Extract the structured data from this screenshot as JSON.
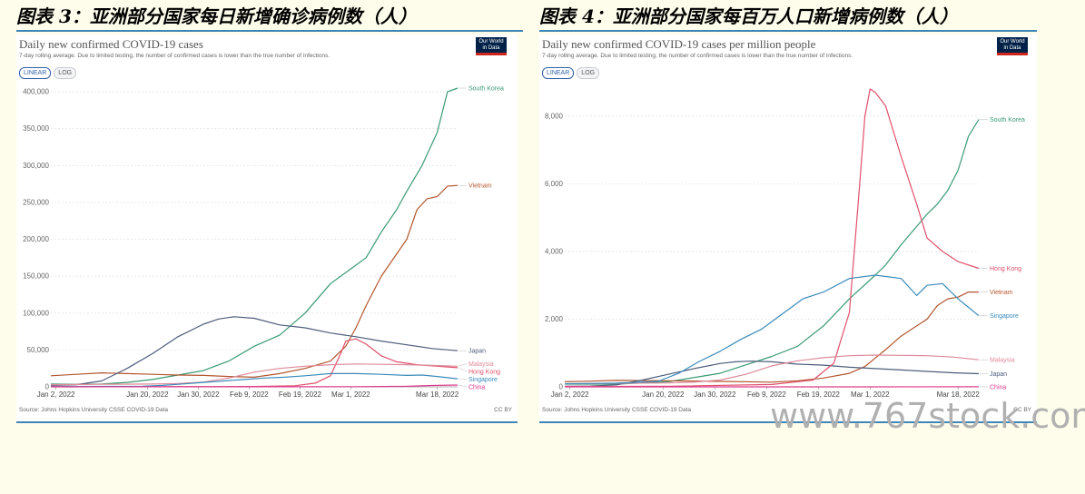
{
  "figures": {
    "fig3_title": "图表 3：亚洲部分国家每日新增确诊病例数（人）",
    "fig4_title": "图表 4：亚洲部分国家每百万人口新增病例数（人）"
  },
  "watermark": "www.767stock.com",
  "colors": {
    "South Korea": "#3a9b73",
    "Vietnam": "#b3562f",
    "Japan": "#4e5d7c",
    "Hong Kong": "#e0506b",
    "Malaysia": "#df8a9a",
    "Singapore": "#3b8bbb",
    "China": "#df3a8c"
  },
  "chart_data": [
    {
      "type": "line",
      "title": "Daily new confirmed COVID-19 cases",
      "subtitle": "7-day rolling average. Due to limited testing, the number of confirmed cases is lower than the true number of infections.",
      "scale_buttons": [
        "LINEAR",
        "LOG"
      ],
      "active_scale": "LINEAR",
      "logo_text": [
        "Our World",
        "in Data"
      ],
      "source": "Source: Johns Hopkins University CSSE COVID-19 Data",
      "license": "CC BY",
      "x_tick_labels": [
        "Jan 2, 2022",
        "Jan 20, 2022",
        "Jan 30, 2022",
        "Feb 9, 2022",
        "Feb 19, 2022",
        "Mar 1, 2022",
        "Mar 18, 2022"
      ],
      "x_tick_days": [
        1,
        19,
        29,
        39,
        49,
        59,
        76
      ],
      "xlim": [
        0,
        80
      ],
      "yticks": [
        0,
        50000,
        100000,
        150000,
        200000,
        250000,
        300000,
        350000,
        400000
      ],
      "ytick_labels": [
        "0",
        "50,000",
        "100,000",
        "150,000",
        "200,000",
        "250,000",
        "300,000",
        "350,000",
        "400,000"
      ],
      "ylim": [
        0,
        405000
      ],
      "grid": true,
      "series": [
        {
          "name": "South Korea",
          "points": [
            [
              0,
              4000
            ],
            [
              5,
              3500
            ],
            [
              10,
              4000
            ],
            [
              15,
              6000
            ],
            [
              20,
              10000
            ],
            [
              25,
              16000
            ],
            [
              30,
              22000
            ],
            [
              35,
              35000
            ],
            [
              40,
              55000
            ],
            [
              45,
              70000
            ],
            [
              50,
              100000
            ],
            [
              55,
              140000
            ],
            [
              60,
              165000
            ],
            [
              62,
              175000
            ],
            [
              65,
              210000
            ],
            [
              68,
              240000
            ],
            [
              70,
              265000
            ],
            [
              73,
              300000
            ],
            [
              75,
              330000
            ],
            [
              76,
              345000
            ],
            [
              78,
              400000
            ],
            [
              80,
              405000
            ]
          ]
        },
        {
          "name": "Vietnam",
          "points": [
            [
              0,
              15000
            ],
            [
              5,
              17000
            ],
            [
              10,
              19000
            ],
            [
              15,
              18000
            ],
            [
              20,
              17000
            ],
            [
              25,
              16000
            ],
            [
              30,
              15500
            ],
            [
              35,
              14000
            ],
            [
              40,
              13000
            ],
            [
              45,
              18000
            ],
            [
              50,
              25000
            ],
            [
              55,
              35000
            ],
            [
              58,
              55000
            ],
            [
              60,
              80000
            ],
            [
              62,
              110000
            ],
            [
              65,
              150000
            ],
            [
              67,
              170000
            ],
            [
              70,
              200000
            ],
            [
              72,
              240000
            ],
            [
              74,
              255000
            ],
            [
              76,
              258000
            ],
            [
              78,
              272000
            ],
            [
              80,
              273000
            ]
          ]
        },
        {
          "name": "Japan",
          "points": [
            [
              0,
              2000
            ],
            [
              5,
              3000
            ],
            [
              10,
              8000
            ],
            [
              15,
              25000
            ],
            [
              20,
              45000
            ],
            [
              25,
              68000
            ],
            [
              30,
              85000
            ],
            [
              33,
              92000
            ],
            [
              36,
              95000
            ],
            [
              40,
              93000
            ],
            [
              45,
              84000
            ],
            [
              50,
              80000
            ],
            [
              55,
              73000
            ],
            [
              60,
              68000
            ],
            [
              65,
              62000
            ],
            [
              70,
              57000
            ],
            [
              75,
              52000
            ],
            [
              80,
              49000
            ]
          ]
        },
        {
          "name": "Hong Kong",
          "points": [
            [
              0,
              50
            ],
            [
              20,
              80
            ],
            [
              40,
              500
            ],
            [
              48,
              1500
            ],
            [
              52,
              5000
            ],
            [
              55,
              15000
            ],
            [
              57,
              45000
            ],
            [
              58,
              62000
            ],
            [
              60,
              65000
            ],
            [
              62,
              58000
            ],
            [
              65,
              42000
            ],
            [
              68,
              34000
            ],
            [
              72,
              30000
            ],
            [
              76,
              28000
            ],
            [
              80,
              26000
            ]
          ]
        },
        {
          "name": "Malaysia",
          "points": [
            [
              0,
              3000
            ],
            [
              10,
              3500
            ],
            [
              20,
              3800
            ],
            [
              25,
              4500
            ],
            [
              30,
              6500
            ],
            [
              35,
              12000
            ],
            [
              40,
              20000
            ],
            [
              45,
              25000
            ],
            [
              50,
              28000
            ],
            [
              55,
              30000
            ],
            [
              60,
              31000
            ],
            [
              65,
              30500
            ],
            [
              70,
              30000
            ],
            [
              75,
              29000
            ],
            [
              80,
              28000
            ]
          ]
        },
        {
          "name": "Singapore",
          "points": [
            [
              0,
              500
            ],
            [
              10,
              600
            ],
            [
              18,
              800
            ],
            [
              22,
              2000
            ],
            [
              26,
              4000
            ],
            [
              30,
              6000
            ],
            [
              34,
              8000
            ],
            [
              38,
              10000
            ],
            [
              42,
              12000
            ],
            [
              46,
              13000
            ],
            [
              50,
              15000
            ],
            [
              55,
              18000
            ],
            [
              60,
              18000
            ],
            [
              65,
              17000
            ],
            [
              70,
              15500
            ],
            [
              73,
              16000
            ],
            [
              76,
              14000
            ],
            [
              80,
              11000
            ]
          ]
        },
        {
          "name": "China",
          "points": [
            [
              0,
              100
            ],
            [
              30,
              100
            ],
            [
              50,
              150
            ],
            [
              60,
              300
            ],
            [
              70,
              700
            ],
            [
              75,
              1800
            ],
            [
              80,
              2500
            ]
          ]
        }
      ],
      "end_labels": {
        "South Korea": "South Korea",
        "Vietnam": "Vietnam",
        "Japan": "Japan",
        "Hong Kong": "Hong Kong",
        "Malaysia": "Malaysia",
        "Singapore": "Singapore",
        "China": "China"
      }
    },
    {
      "type": "line",
      "title": "Daily new confirmed COVID-19 cases per million people",
      "subtitle": "7-day rolling average. Due to limited testing, the number of confirmed cases is lower than the true number of infections.",
      "scale_buttons": [
        "LINEAR",
        "LOG"
      ],
      "active_scale": "LINEAR",
      "logo_text": [
        "Our World",
        "in Data"
      ],
      "source": "Source: Johns Hopkins University CSSE COVID-19 Data",
      "license": "CC BY",
      "x_tick_labels": [
        "Jan 2, 2022",
        "Jan 20, 2022",
        "Jan 30, 2022",
        "Feb 9, 2022",
        "Feb 19, 2022",
        "Mar 1, 2022",
        "Mar 18, 2022"
      ],
      "x_tick_days": [
        1,
        19,
        29,
        39,
        49,
        59,
        76
      ],
      "xlim": [
        0,
        80
      ],
      "yticks": [
        0,
        2000,
        4000,
        6000,
        8000
      ],
      "ytick_labels": [
        "0",
        "2,000",
        "4,000",
        "6,000",
        "8,000"
      ],
      "ylim": [
        0,
        8800
      ],
      "grid": true,
      "series": [
        {
          "name": "South Korea",
          "points": [
            [
              0,
              80
            ],
            [
              10,
              80
            ],
            [
              20,
              150
            ],
            [
              30,
              400
            ],
            [
              35,
              650
            ],
            [
              40,
              900
            ],
            [
              45,
              1200
            ],
            [
              50,
              1800
            ],
            [
              55,
              2600
            ],
            [
              60,
              3300
            ],
            [
              62,
              3600
            ],
            [
              65,
              4200
            ],
            [
              70,
              5100
            ],
            [
              72,
              5400
            ],
            [
              74,
              5800
            ],
            [
              76,
              6400
            ],
            [
              78,
              7400
            ],
            [
              80,
              7900
            ]
          ]
        },
        {
          "name": "Vietnam",
          "points": [
            [
              0,
              150
            ],
            [
              5,
              170
            ],
            [
              10,
              190
            ],
            [
              20,
              180
            ],
            [
              30,
              160
            ],
            [
              40,
              140
            ],
            [
              45,
              180
            ],
            [
              50,
              260
            ],
            [
              55,
              400
            ],
            [
              58,
              600
            ],
            [
              60,
              850
            ],
            [
              62,
              1100
            ],
            [
              65,
              1500
            ],
            [
              67,
              1700
            ],
            [
              70,
              2000
            ],
            [
              72,
              2400
            ],
            [
              74,
              2600
            ],
            [
              76,
              2650
            ],
            [
              78,
              2800
            ],
            [
              80,
              2800
            ]
          ]
        },
        {
          "name": "Japan",
          "points": [
            [
              0,
              20
            ],
            [
              5,
              25
            ],
            [
              10,
              60
            ],
            [
              15,
              200
            ],
            [
              20,
              370
            ],
            [
              25,
              540
            ],
            [
              30,
              690
            ],
            [
              33,
              740
            ],
            [
              36,
              760
            ],
            [
              40,
              740
            ],
            [
              45,
              670
            ],
            [
              50,
              640
            ],
            [
              55,
              580
            ],
            [
              60,
              540
            ],
            [
              65,
              500
            ],
            [
              70,
              455
            ],
            [
              75,
              415
            ],
            [
              80,
              390
            ]
          ]
        },
        {
          "name": "Hong Kong",
          "points": [
            [
              0,
              10
            ],
            [
              20,
              15
            ],
            [
              40,
              70
            ],
            [
              48,
              200
            ],
            [
              52,
              700
            ],
            [
              55,
              2200
            ],
            [
              57,
              6000
            ],
            [
              58,
              8000
            ],
            [
              59,
              8800
            ],
            [
              60,
              8700
            ],
            [
              62,
              8300
            ],
            [
              65,
              6800
            ],
            [
              68,
              5400
            ],
            [
              70,
              4400
            ],
            [
              73,
              4000
            ],
            [
              76,
              3700
            ],
            [
              80,
              3500
            ]
          ]
        },
        {
          "name": "Malaysia",
          "points": [
            [
              0,
              90
            ],
            [
              10,
              105
            ],
            [
              20,
              115
            ],
            [
              25,
              140
            ],
            [
              30,
              200
            ],
            [
              35,
              370
            ],
            [
              40,
              620
            ],
            [
              45,
              770
            ],
            [
              50,
              860
            ],
            [
              55,
              920
            ],
            [
              60,
              940
            ],
            [
              65,
              930
            ],
            [
              70,
              920
            ],
            [
              75,
              880
            ],
            [
              80,
              800
            ]
          ]
        },
        {
          "name": "Singapore",
          "points": [
            [
              0,
              90
            ],
            [
              10,
              110
            ],
            [
              18,
              160
            ],
            [
              22,
              400
            ],
            [
              26,
              750
            ],
            [
              30,
              1050
            ],
            [
              34,
              1400
            ],
            [
              38,
              1700
            ],
            [
              42,
              2150
            ],
            [
              46,
              2600
            ],
            [
              50,
              2800
            ],
            [
              55,
              3200
            ],
            [
              60,
              3300
            ],
            [
              65,
              3200
            ],
            [
              68,
              2700
            ],
            [
              70,
              3000
            ],
            [
              73,
              3050
            ],
            [
              76,
              2600
            ],
            [
              80,
              2100
            ]
          ]
        },
        {
          "name": "China",
          "points": [
            [
              0,
              0
            ],
            [
              40,
              0
            ],
            [
              60,
              0
            ],
            [
              80,
              2
            ]
          ]
        }
      ],
      "end_labels": {
        "South Korea": "South Korea",
        "Vietnam": "Vietnam",
        "Japan": "Japan",
        "Hong Kong": "Hong Kong",
        "Malaysia": "Malaysia",
        "Singapore": "Singapore",
        "China": "China"
      }
    }
  ]
}
